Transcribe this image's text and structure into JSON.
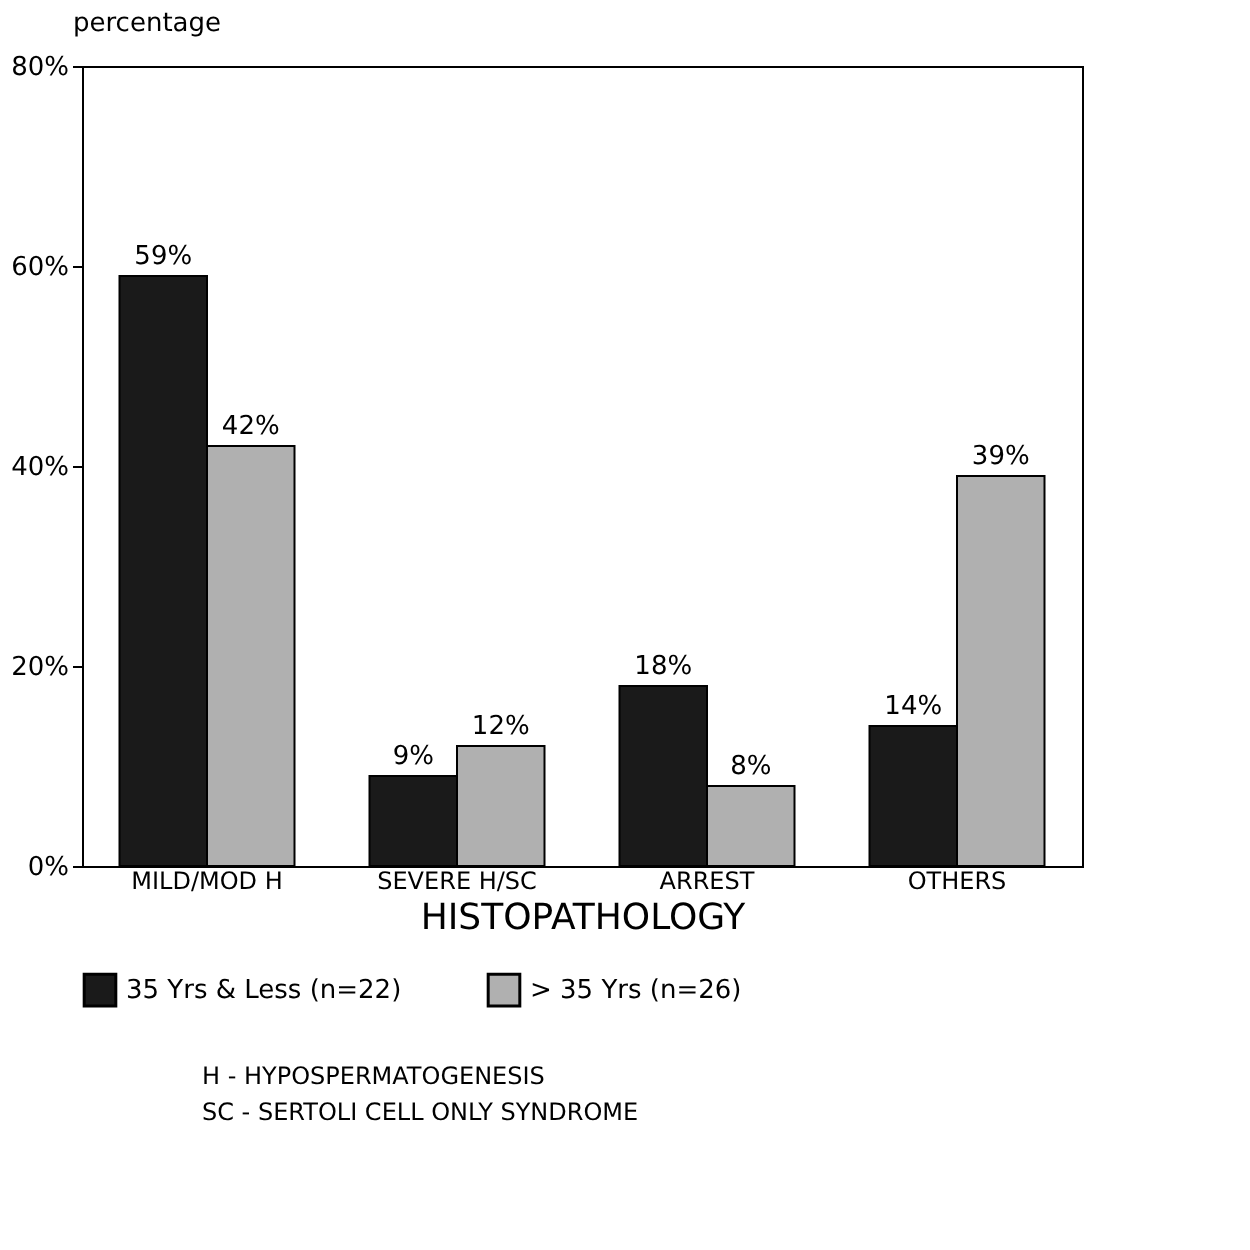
{
  "chart_data": {
    "type": "bar",
    "xlabel": "HISTOPATHOLOGY",
    "ylabel": "percentage",
    "categories": [
      "MILD/MOD H",
      "SEVERE H/SC",
      "ARREST",
      "OTHERS"
    ],
    "series": [
      {
        "name": "35 Yrs & Less (n=22)",
        "color": "#1a1a1a",
        "values": [
          59,
          9,
          18,
          14
        ],
        "value_labels": [
          "59%",
          "9%",
          "18%",
          "14%"
        ]
      },
      {
        "name": "> 35 Yrs (n=26)",
        "color": "#b0b0b0",
        "values": [
          42,
          12,
          8,
          39
        ],
        "value_labels": [
          "42%",
          "12%",
          "8%",
          "39%"
        ]
      }
    ],
    "ylim": [
      0,
      80
    ],
    "yticks": [
      {
        "value": 0,
        "label": "0%"
      },
      {
        "value": 20,
        "label": "20%"
      },
      {
        "value": 40,
        "label": "40%"
      },
      {
        "value": 60,
        "label": "60%"
      },
      {
        "value": 80,
        "label": "80%"
      }
    ],
    "grid": false,
    "legend": "bottom",
    "annotations": [
      "H - HYPOSPERMATOGENESIS",
      "SC - SERTOLI CELL ONLY SYNDROME"
    ]
  }
}
